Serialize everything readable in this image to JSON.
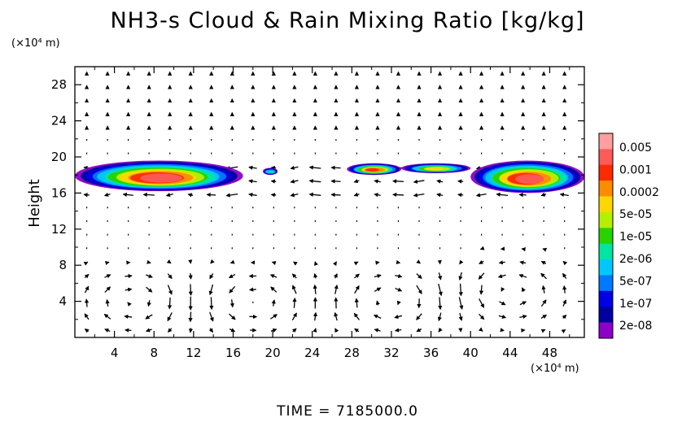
{
  "chart_data": {
    "type": "heatmap",
    "title": "NH3-s Cloud & Rain Mixing Ratio [kg/kg]",
    "ylabel": "Height",
    "y_unit": "(×10⁴ m)",
    "x_unit": "(×10⁴ m)",
    "xlim": [
      0,
      51.5
    ],
    "ylim": [
      0,
      30
    ],
    "x_ticks": [
      "4",
      "8",
      "12",
      "16",
      "20",
      "24",
      "28",
      "32",
      "36",
      "40",
      "44",
      "48"
    ],
    "y_ticks": [
      "4",
      "8",
      "12",
      "16",
      "20",
      "24",
      "28"
    ],
    "time_label": "TIME = 7185000.0",
    "colorbar": {
      "labels": [
        "0.005",
        "0.001",
        "0.0002",
        "5e-05",
        "1e-05",
        "2e-06",
        "5e-07",
        "1e-07",
        "2e-08"
      ],
      "colors": [
        "#ff9f9f",
        "#ff5a5a",
        "#ff2a00",
        "#ff8c00",
        "#ffd700",
        "#b4f000",
        "#28d200",
        "#00e6a0",
        "#00c8ff",
        "#0078ff",
        "#0000e6",
        "#0000a0",
        "#8c00c8"
      ]
    },
    "cloud_regions": [
      {
        "x": [
          0,
          17
        ],
        "y": [
          16.2,
          19.6
        ],
        "peak": "0.001"
      },
      {
        "x": [
          19,
          20.5
        ],
        "y": [
          18.0,
          18.8
        ],
        "peak": "1e-07"
      },
      {
        "x": [
          27.5,
          33
        ],
        "y": [
          18.0,
          19.3
        ],
        "peak": "0.0002"
      },
      {
        "x": [
          33,
          40
        ],
        "y": [
          18.2,
          19.3
        ],
        "peak": "1e-05"
      },
      {
        "x": [
          40,
          51.5
        ],
        "y": [
          16.0,
          19.6
        ],
        "peak": "0.001"
      }
    ],
    "wind_vectors": "quiver field; circulation cells centered near x=18,y=4 and x=32,y=4 and x=44,y=5"
  }
}
